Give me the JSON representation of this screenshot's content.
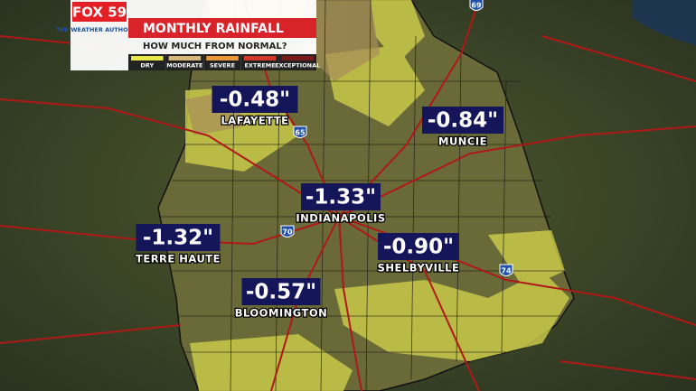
{
  "header": {
    "logo": "FOX 59",
    "tagline": "THE WEATHER AUTHORITY",
    "title": "MONTHLY RAINFALL",
    "subtitle": "HOW MUCH FROM NORMAL?",
    "legend": [
      "DRY",
      "MODERATE",
      "SEVERE",
      "EXTREME",
      "EXCEPTIONAL"
    ]
  },
  "cities": [
    {
      "value": "-0.48\"",
      "name": "LAFAYETTE"
    },
    {
      "value": "-0.84\"",
      "name": "MUNCIE"
    },
    {
      "value": "-1.33\"",
      "name": "INDIANAPOLIS"
    },
    {
      "value": "-1.32\"",
      "name": "TERRE HAUTE"
    },
    {
      "value": "-0.90\"",
      "name": "SHELBYVILLE"
    },
    {
      "value": "-0.57\"",
      "name": "BLOOMINGTON"
    }
  ],
  "highways": [
    "65",
    "70",
    "74",
    "69"
  ]
}
